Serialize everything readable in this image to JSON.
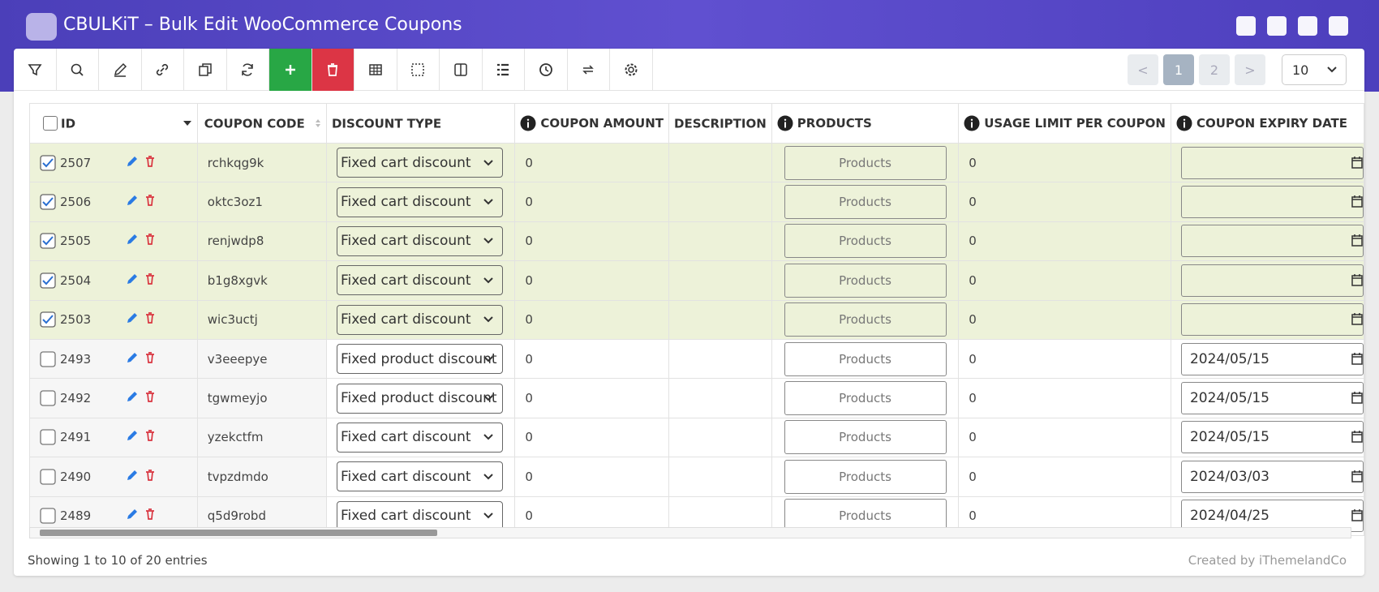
{
  "header": {
    "title": "CBULKiT – Bulk Edit WooCommerce Coupons"
  },
  "pagination": {
    "prev": "<",
    "pages": [
      1,
      2
    ],
    "current": 1,
    "next": ">",
    "per_page": 10
  },
  "table": {
    "columns": [
      "ID",
      "COUPON CODE",
      "DISCOUNT TYPE",
      "COUPON AMOUNT",
      "DESCRIPTION",
      "PRODUCTS",
      "USAGE LIMIT PER COUPON",
      "COUPON EXPIRY DATE"
    ],
    "info_columns": [
      3,
      5,
      6,
      7
    ],
    "rows": [
      {
        "checked": true,
        "id": 2507,
        "code": "rchkqg9k",
        "discount_type": "Fixed cart discount",
        "amount": 0,
        "products": "Products",
        "usage_limit": 0
      },
      {
        "checked": true,
        "id": 2506,
        "code": "oktc3oz1",
        "discount_type": "Fixed cart discount",
        "amount": 0,
        "products": "Products",
        "usage_limit": 0
      },
      {
        "checked": true,
        "id": 2505,
        "code": "renjwdp8",
        "discount_type": "Fixed cart discount",
        "amount": 0,
        "products": "Products",
        "usage_limit": 0
      },
      {
        "checked": true,
        "id": 2504,
        "code": "b1g8xgvk",
        "discount_type": "Fixed cart discount",
        "amount": 0,
        "products": "Products",
        "usage_limit": 0
      },
      {
        "checked": true,
        "id": 2503,
        "code": "wic3uctj",
        "discount_type": "Fixed cart discount",
        "amount": 0,
        "products": "Products",
        "usage_limit": 0
      },
      {
        "checked": false,
        "id": 2493,
        "code": "v3eeepye",
        "discount_type": "Fixed product discount",
        "amount": 0,
        "products": "Products",
        "usage_limit": 0,
        "expiry": "2024/05/15"
      },
      {
        "checked": false,
        "id": 2492,
        "code": "tgwmeyjo",
        "discount_type": "Fixed product discount",
        "amount": 0,
        "products": "Products",
        "usage_limit": 0,
        "expiry": "2024/05/15"
      },
      {
        "checked": false,
        "id": 2491,
        "code": "yzekctfm",
        "discount_type": "Fixed cart discount",
        "amount": 0,
        "products": "Products",
        "usage_limit": 0,
        "expiry": "2024/05/15"
      },
      {
        "checked": false,
        "id": 2490,
        "code": "tvpzdmdo",
        "discount_type": "Fixed cart discount",
        "amount": 0,
        "products": "Products",
        "usage_limit": 0,
        "expiry": "2024/03/03"
      },
      {
        "checked": false,
        "id": 2489,
        "code": "q5d9robd",
        "discount_type": "Fixed cart discount",
        "amount": 0,
        "products": "Products",
        "usage_limit": 0,
        "expiry": "2024/04/25"
      }
    ]
  },
  "footer": {
    "info": "Showing 1 to 10 of 20 entries",
    "credit": "Created by iThemelandCo"
  }
}
